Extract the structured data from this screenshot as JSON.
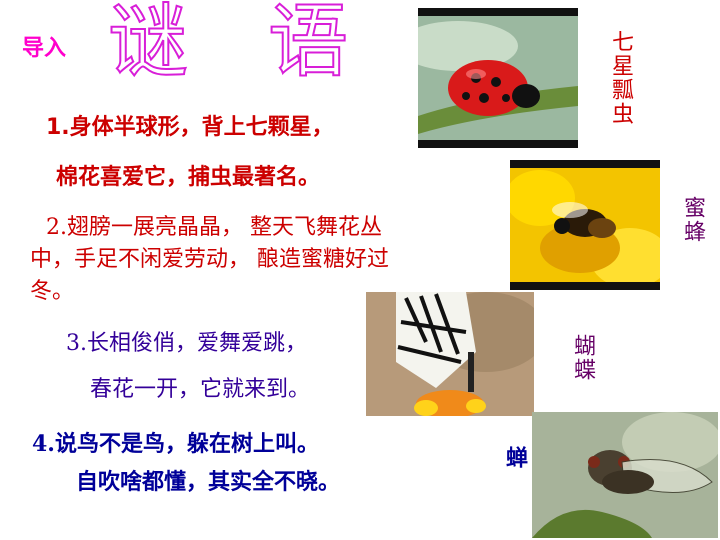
{
  "header": {
    "lead_in": "导入",
    "title_char_1": "谜",
    "title_char_2": "语"
  },
  "riddles": [
    {
      "line1": "1.身体半球形，背上七颗星，",
      "line2": "棉花喜爱它，捕虫最著名。"
    },
    {
      "line1": "2.翅膀一展亮晶晶， 整天飞舞花丛",
      "line2": "中，手足不闲爱劳动， 酿造蜜糖好过",
      "line3": "冬。"
    },
    {
      "line1": "3.长相俊俏，爱舞爱跳，",
      "line2": "春花一开，它就来到。"
    },
    {
      "line1": "4.说鸟不是鸟，躲在树上叫。",
      "line2": "自吹啥都懂，其实全不晓。"
    }
  ],
  "answers": {
    "ladybug": "七星瓢虫",
    "bee": "蜜蜂",
    "butterfly": "蝴蝶",
    "cicada": "蝉"
  },
  "colors": {
    "lead_in": "#ff00cc",
    "title_outline": "#d81ed8",
    "riddle1": "#cc0000",
    "riddle2": "#cc0000",
    "riddle3": "#330099",
    "riddle4": "#000099",
    "answer_red": "#cc0000",
    "answer_purple": "#660066",
    "answer_blue": "#000099"
  }
}
